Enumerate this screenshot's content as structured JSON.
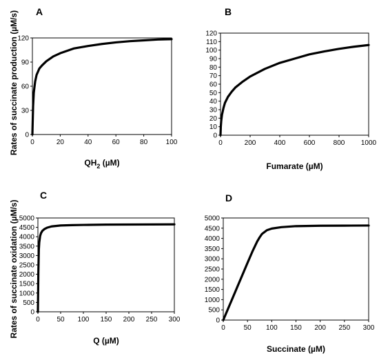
{
  "y_label_top": "Rates of succinate production (µM/s)",
  "y_label_bottom": "Rates of succinate oxidation (µM/s)",
  "chart_data": [
    {
      "panel": "A",
      "type": "line",
      "xlabel": "QH2 (µM)",
      "xlabel_parts": {
        "pre": "QH",
        "sub": "2",
        "post": " (µM)"
      },
      "xlim": [
        0,
        100
      ],
      "ylim": [
        0,
        120
      ],
      "xticks": [
        0,
        20,
        40,
        60,
        80,
        100
      ],
      "yticks": [
        0,
        30,
        60,
        90,
        120
      ],
      "grid": false,
      "series": [
        {
          "x": [
            0,
            0.5,
            1,
            2,
            3,
            5,
            7,
            10,
            15,
            20,
            30,
            40,
            50,
            60,
            70,
            80,
            90,
            100
          ],
          "y": [
            0,
            35,
            52,
            66,
            74,
            82,
            86,
            91,
            97,
            101,
            107,
            110,
            112.5,
            114.5,
            116,
            117,
            118,
            118.5
          ]
        }
      ]
    },
    {
      "panel": "B",
      "type": "line",
      "xlabel": "Fumarate (µM)",
      "xlim": [
        0,
        1000
      ],
      "ylim": [
        0,
        120
      ],
      "xticks": [
        0,
        200,
        400,
        600,
        800,
        1000
      ],
      "yticks": [
        0,
        10,
        20,
        30,
        40,
        50,
        60,
        70,
        80,
        90,
        100,
        110,
        120
      ],
      "grid": false,
      "series": [
        {
          "x": [
            0,
            2,
            5,
            10,
            20,
            30,
            50,
            75,
            100,
            150,
            200,
            300,
            400,
            500,
            600,
            700,
            800,
            900,
            1000
          ],
          "y": [
            0,
            10,
            17,
            24,
            32,
            38,
            45,
            51,
            56,
            63,
            69,
            78,
            85,
            90,
            95,
            98.5,
            101.5,
            104,
            106
          ]
        }
      ]
    },
    {
      "panel": "C",
      "type": "line",
      "xlabel": "Q (µM)",
      "xlim": [
        0,
        300
      ],
      "ylim": [
        0,
        5000
      ],
      "xticks": [
        0,
        50,
        100,
        150,
        200,
        250,
        300
      ],
      "yticks": [
        0,
        500,
        1000,
        1500,
        2000,
        2500,
        3000,
        3500,
        4000,
        4500,
        5000
      ],
      "grid": false,
      "series": [
        {
          "x": [
            0,
            1,
            2,
            3,
            5,
            7,
            10,
            15,
            20,
            30,
            50,
            75,
            100,
            150,
            200,
            250,
            300
          ],
          "y": [
            0,
            2100,
            3300,
            3700,
            4050,
            4200,
            4320,
            4420,
            4480,
            4550,
            4600,
            4620,
            4630,
            4645,
            4650,
            4655,
            4660
          ]
        }
      ]
    },
    {
      "panel": "D",
      "type": "line",
      "xlabel": "Succinate (µM)",
      "xlim": [
        0,
        300
      ],
      "ylim": [
        0,
        5000
      ],
      "xticks": [
        0,
        50,
        100,
        150,
        200,
        250,
        300
      ],
      "yticks": [
        0,
        500,
        1000,
        1500,
        2000,
        2500,
        3000,
        3500,
        4000,
        4500,
        5000
      ],
      "grid": false,
      "series": [
        {
          "x": [
            0,
            10,
            20,
            30,
            40,
            50,
            60,
            70,
            75,
            80,
            90,
            100,
            120,
            150,
            200,
            250,
            300
          ],
          "y": [
            0,
            560,
            1120,
            1680,
            2240,
            2800,
            3350,
            3850,
            4050,
            4220,
            4400,
            4480,
            4550,
            4600,
            4620,
            4625,
            4630
          ]
        }
      ]
    }
  ]
}
